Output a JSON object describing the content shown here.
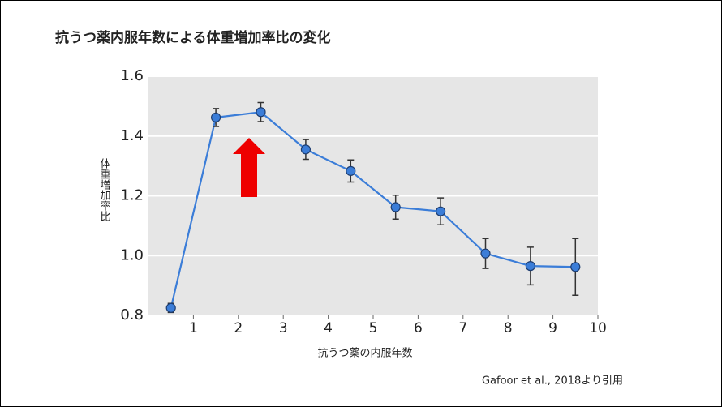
{
  "chart_data": {
    "type": "line",
    "title": "抗うつ薬内服年数による体重増加率比の変化",
    "x_label": "抗うつ薬の内服年数",
    "y_label": "体重増加率比",
    "source": "Gafoor et al., 2018より引用",
    "x": [
      0.5,
      1.5,
      2.5,
      3.5,
      4.5,
      5.5,
      6.5,
      7.5,
      8.5,
      9.5
    ],
    "values": [
      0.825,
      1.462,
      1.48,
      1.355,
      1.283,
      1.162,
      1.148,
      1.007,
      0.965,
      0.962
    ],
    "errors": [
      0.015,
      0.03,
      0.032,
      0.033,
      0.037,
      0.04,
      0.045,
      0.05,
      0.063,
      0.095
    ],
    "color": "#3b7dd8",
    "xlim": [
      0,
      10
    ],
    "xticks": [
      1,
      2,
      3,
      4,
      5,
      6,
      7,
      8,
      9,
      10
    ],
    "ylim": [
      0.8,
      1.6
    ],
    "yticks": [
      0.8,
      {
        "value": 1,
        "label": "1.0"
      },
      1.2,
      1.4,
      1.6
    ],
    "grid": true
  }
}
